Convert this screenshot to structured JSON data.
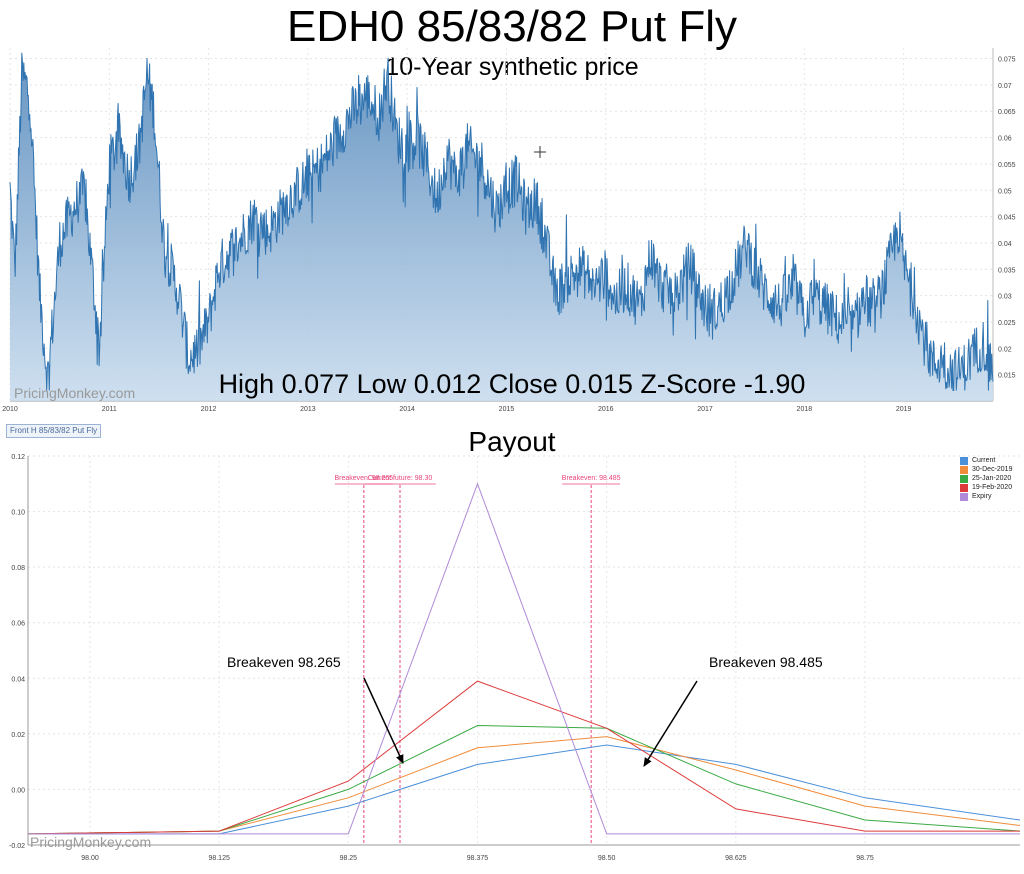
{
  "title": "EDH0 85/83/82 Put Fly",
  "subtitle": "10-Year synthetic price",
  "stats": "High 0.077 Low 0.012 Close 0.015 Z-Score -1.90",
  "watermark": "PricingMonkey.com",
  "series_tag": "Front H 85/83/82 Put Fly",
  "payout_title": "Payout",
  "callouts": {
    "left": "Breakeven 98.265",
    "right": "Breakeven 98.485"
  },
  "colors": {
    "history_line": "#2f73b0",
    "history_fill_top": "#5e8fbf",
    "history_fill_bottom": "#c9dcee",
    "current": "#4a90d9",
    "dec30": "#f08c3a",
    "jan25": "#3aaa44",
    "feb19": "#dd3b3b",
    "expiry": "#b08ad8",
    "marker": "#e8467c"
  },
  "chart_data": [
    {
      "type": "area",
      "name": "history",
      "x_ticks": [
        "2010",
        "2011",
        "2012",
        "2013",
        "2014",
        "2015",
        "2016",
        "2017",
        "2018",
        "2019"
      ],
      "y_ticks": [
        "0.015",
        "0.02",
        "0.025",
        "0.03",
        "0.035",
        "0.04",
        "0.045",
        "0.05",
        "0.055",
        "0.06",
        "0.065",
        "0.07",
        "0.075"
      ],
      "ylim": [
        0.01,
        0.077
      ],
      "xlim": [
        2010.0,
        2019.9
      ],
      "anchors": [
        [
          2010.0,
          0.05
        ],
        [
          2010.05,
          0.035
        ],
        [
          2010.12,
          0.072
        ],
        [
          2010.2,
          0.068
        ],
        [
          2010.3,
          0.03
        ],
        [
          2010.38,
          0.014
        ],
        [
          2010.5,
          0.04
        ],
        [
          2010.6,
          0.045
        ],
        [
          2010.75,
          0.05
        ],
        [
          2010.9,
          0.02
        ],
        [
          2011.0,
          0.055
        ],
        [
          2011.1,
          0.06
        ],
        [
          2011.2,
          0.052
        ],
        [
          2011.3,
          0.058
        ],
        [
          2011.38,
          0.072
        ],
        [
          2011.45,
          0.065
        ],
        [
          2011.55,
          0.04
        ],
        [
          2011.7,
          0.03
        ],
        [
          2011.8,
          0.018
        ],
        [
          2011.9,
          0.02
        ],
        [
          2012.0,
          0.025
        ],
        [
          2012.1,
          0.035
        ],
        [
          2012.2,
          0.038
        ],
        [
          2012.3,
          0.04
        ],
        [
          2012.45,
          0.045
        ],
        [
          2012.6,
          0.042
        ],
        [
          2012.8,
          0.048
        ],
        [
          2013.0,
          0.052
        ],
        [
          2013.15,
          0.055
        ],
        [
          2013.3,
          0.06
        ],
        [
          2013.45,
          0.065
        ],
        [
          2013.6,
          0.068
        ],
        [
          2013.72,
          0.064
        ],
        [
          2013.8,
          0.072
        ],
        [
          2013.9,
          0.06
        ],
        [
          2014.0,
          0.058
        ],
        [
          2014.1,
          0.06
        ],
        [
          2014.2,
          0.055
        ],
        [
          2014.3,
          0.048
        ],
        [
          2014.4,
          0.057
        ],
        [
          2014.5,
          0.052
        ],
        [
          2014.6,
          0.058
        ],
        [
          2014.75,
          0.055
        ],
        [
          2014.9,
          0.046
        ],
        [
          2015.0,
          0.05
        ],
        [
          2015.1,
          0.052
        ],
        [
          2015.2,
          0.046
        ],
        [
          2015.3,
          0.048
        ],
        [
          2015.4,
          0.04
        ],
        [
          2015.5,
          0.03
        ],
        [
          2015.6,
          0.033
        ],
        [
          2015.75,
          0.035
        ],
        [
          2015.9,
          0.032
        ],
        [
          2016.0,
          0.034
        ],
        [
          2016.1,
          0.029
        ],
        [
          2016.2,
          0.032
        ],
        [
          2016.35,
          0.028
        ],
        [
          2016.45,
          0.038
        ],
        [
          2016.55,
          0.032
        ],
        [
          2016.7,
          0.03
        ],
        [
          2016.85,
          0.036
        ],
        [
          2016.95,
          0.03
        ],
        [
          2017.05,
          0.026
        ],
        [
          2017.15,
          0.028
        ],
        [
          2017.3,
          0.034
        ],
        [
          2017.42,
          0.04
        ],
        [
          2017.5,
          0.035
        ],
        [
          2017.6,
          0.031
        ],
        [
          2017.75,
          0.028
        ],
        [
          2017.9,
          0.032
        ],
        [
          2018.0,
          0.026
        ],
        [
          2018.1,
          0.03
        ],
        [
          2018.2,
          0.028
        ],
        [
          2018.35,
          0.025
        ],
        [
          2018.5,
          0.024
        ],
        [
          2018.6,
          0.03
        ],
        [
          2018.7,
          0.027
        ],
        [
          2018.8,
          0.032
        ],
        [
          2018.88,
          0.038
        ],
        [
          2018.95,
          0.043
        ],
        [
          2019.0,
          0.036
        ],
        [
          2019.1,
          0.03
        ],
        [
          2019.2,
          0.022
        ],
        [
          2019.3,
          0.017
        ],
        [
          2019.4,
          0.018
        ],
        [
          2019.5,
          0.015
        ],
        [
          2019.6,
          0.016
        ],
        [
          2019.7,
          0.019
        ],
        [
          2019.8,
          0.021
        ],
        [
          2019.9,
          0.016
        ]
      ]
    },
    {
      "type": "line",
      "name": "payout",
      "x_ticks": [
        "98.00",
        "98.125",
        "98.25",
        "98.375",
        "98.50",
        "98.625",
        "98.75"
      ],
      "y_ticks": [
        "-0.02",
        "0.00",
        "0.02",
        "0.04",
        "0.06",
        "0.08",
        "0.10",
        "0.12"
      ],
      "xlim": [
        97.94,
        98.9
      ],
      "ylim": [
        -0.02,
        0.12
      ],
      "legend_position": "top-right",
      "series": [
        {
          "name": "Current",
          "color_key": "current",
          "x": [
            97.94,
            98.125,
            98.25,
            98.375,
            98.5,
            98.625,
            98.75,
            98.9
          ],
          "y": [
            -0.016,
            -0.016,
            -0.006,
            0.009,
            0.016,
            0.009,
            -0.003,
            -0.011
          ]
        },
        {
          "name": "30-Dec-2019",
          "color_key": "dec30",
          "x": [
            97.94,
            98.125,
            98.25,
            98.375,
            98.5,
            98.625,
            98.75,
            98.9
          ],
          "y": [
            -0.016,
            -0.015,
            -0.003,
            0.015,
            0.019,
            0.007,
            -0.006,
            -0.013
          ]
        },
        {
          "name": "25-Jan-2020",
          "color_key": "jan25",
          "x": [
            97.94,
            98.125,
            98.25,
            98.375,
            98.5,
            98.625,
            98.75,
            98.9
          ],
          "y": [
            -0.016,
            -0.015,
            0.0,
            0.023,
            0.022,
            0.002,
            -0.011,
            -0.015
          ]
        },
        {
          "name": "19-Feb-2020",
          "color_key": "feb19",
          "x": [
            97.94,
            98.125,
            98.25,
            98.375,
            98.5,
            98.625,
            98.75,
            98.9
          ],
          "y": [
            -0.016,
            -0.015,
            0.003,
            0.039,
            0.022,
            -0.007,
            -0.015,
            -0.015
          ]
        },
        {
          "name": "Expiry",
          "color_key": "expiry",
          "x": [
            97.94,
            98.125,
            98.25,
            98.375,
            98.5,
            98.9
          ],
          "y": [
            -0.016,
            -0.016,
            -0.016,
            0.11,
            -0.016,
            -0.016
          ]
        }
      ],
      "markers": [
        {
          "label": "Breakeven: 98.265",
          "x": 98.265
        },
        {
          "label": "Current future: 98.30",
          "x": 98.3
        },
        {
          "label": "Breakeven: 98.485",
          "x": 98.485
        }
      ]
    }
  ]
}
